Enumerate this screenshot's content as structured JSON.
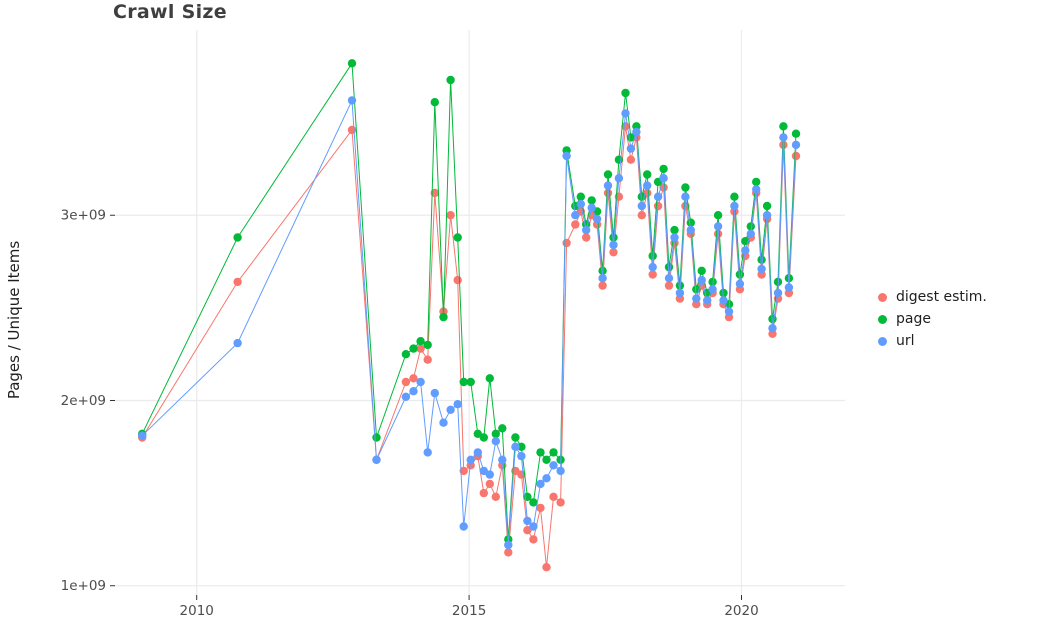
{
  "chart_data": {
    "type": "scatter",
    "title": "Crawl Size",
    "xlabel": "",
    "ylabel": "Pages / Unique Items",
    "y_values_scale": 1000000000.0,
    "xlim": [
      2008.5,
      2021.9
    ],
    "ylim": [
      0.95,
      4.0
    ],
    "x_ticks": [
      2010,
      2015,
      2020
    ],
    "x_tick_labels": [
      "2010",
      "2015",
      "2020"
    ],
    "y_ticks": [
      1,
      2,
      3
    ],
    "y_tick_labels": [
      "1e+09",
      "2e+09",
      "3e+09"
    ],
    "grid": true,
    "legend": {
      "position": "right",
      "entries": [
        {
          "label": "digest estim.",
          "color": "#F8766D"
        },
        {
          "label": "page",
          "color": "#00BA38"
        },
        {
          "label": "url",
          "color": "#619CFF"
        }
      ]
    },
    "x": [
      2009.0,
      2010.75,
      2012.85,
      2013.3,
      2013.84,
      2013.98,
      2014.11,
      2014.24,
      2014.37,
      2014.53,
      2014.66,
      2014.79,
      2014.9,
      2015.03,
      2015.16,
      2015.27,
      2015.38,
      2015.49,
      2015.61,
      2015.72,
      2015.85,
      2015.96,
      2016.07,
      2016.18,
      2016.31,
      2016.42,
      2016.55,
      2016.68,
      2016.79,
      2016.95,
      2017.05,
      2017.15,
      2017.25,
      2017.35,
      2017.45,
      2017.55,
      2017.65,
      2017.75,
      2017.87,
      2017.97,
      2018.07,
      2018.17,
      2018.27,
      2018.37,
      2018.47,
      2018.57,
      2018.67,
      2018.77,
      2018.87,
      2018.97,
      2019.07,
      2019.17,
      2019.27,
      2019.37,
      2019.47,
      2019.57,
      2019.67,
      2019.77,
      2019.87,
      2019.97,
      2020.07,
      2020.17,
      2020.27,
      2020.37,
      2020.47,
      2020.57,
      2020.67,
      2020.77,
      2020.87,
      2021.0
    ],
    "series": [
      {
        "name": "digest estim.",
        "color": "#F8766D",
        "values": [
          1.8,
          2.64,
          3.46,
          1.68,
          2.1,
          2.12,
          2.28,
          2.22,
          3.12,
          2.48,
          3.0,
          2.65,
          1.62,
          1.65,
          1.7,
          1.5,
          1.55,
          1.48,
          1.65,
          1.18,
          1.62,
          1.6,
          1.3,
          1.25,
          1.42,
          1.1,
          1.48,
          1.45,
          2.85,
          2.95,
          3.02,
          2.88,
          3.0,
          2.95,
          2.62,
          3.12,
          2.8,
          3.1,
          3.48,
          3.3,
          3.42,
          3.0,
          3.12,
          2.68,
          3.05,
          3.15,
          2.62,
          2.85,
          2.55,
          3.05,
          2.9,
          2.52,
          2.62,
          2.52,
          2.58,
          2.9,
          2.52,
          2.45,
          3.02,
          2.6,
          2.78,
          2.88,
          3.12,
          2.68,
          2.98,
          2.36,
          2.55,
          3.38,
          2.58,
          3.32
        ]
      },
      {
        "name": "page",
        "color": "#00BA38",
        "values": [
          1.82,
          2.88,
          3.82,
          1.8,
          2.25,
          2.28,
          2.32,
          2.3,
          3.61,
          2.45,
          3.73,
          2.88,
          2.1,
          2.1,
          1.82,
          1.8,
          2.12,
          1.82,
          1.85,
          1.25,
          1.8,
          1.75,
          1.48,
          1.45,
          1.72,
          1.68,
          1.72,
          1.68,
          3.35,
          3.05,
          3.1,
          2.95,
          3.08,
          3.02,
          2.7,
          3.22,
          2.88,
          3.3,
          3.66,
          3.42,
          3.48,
          3.1,
          3.22,
          2.78,
          3.18,
          3.25,
          2.72,
          2.92,
          2.62,
          3.15,
          2.96,
          2.6,
          2.7,
          2.58,
          2.64,
          3.0,
          2.58,
          2.52,
          3.1,
          2.68,
          2.86,
          2.94,
          3.18,
          2.76,
          3.05,
          2.44,
          2.64,
          3.48,
          2.66,
          3.44
        ]
      },
      {
        "name": "url",
        "color": "#619CFF",
        "values": [
          1.81,
          2.31,
          3.62,
          1.68,
          2.02,
          2.05,
          2.1,
          1.72,
          2.04,
          1.88,
          1.95,
          1.98,
          1.32,
          1.68,
          1.72,
          1.62,
          1.6,
          1.78,
          1.68,
          1.22,
          1.75,
          1.7,
          1.35,
          1.32,
          1.55,
          1.58,
          1.65,
          1.62,
          3.32,
          3.0,
          3.06,
          2.92,
          3.04,
          2.98,
          2.66,
          3.16,
          2.84,
          3.2,
          3.55,
          3.36,
          3.45,
          3.05,
          3.16,
          2.72,
          3.1,
          3.2,
          2.66,
          2.88,
          2.58,
          3.1,
          2.92,
          2.55,
          2.65,
          2.54,
          2.6,
          2.94,
          2.54,
          2.48,
          3.05,
          2.63,
          2.81,
          2.9,
          3.14,
          2.71,
          3.0,
          2.39,
          2.58,
          3.42,
          2.61,
          3.38
        ]
      }
    ]
  },
  "style": {
    "grid_color": "#ebebeb",
    "tick_color": "#333333",
    "tick_label_color": "#4d4d4d"
  }
}
